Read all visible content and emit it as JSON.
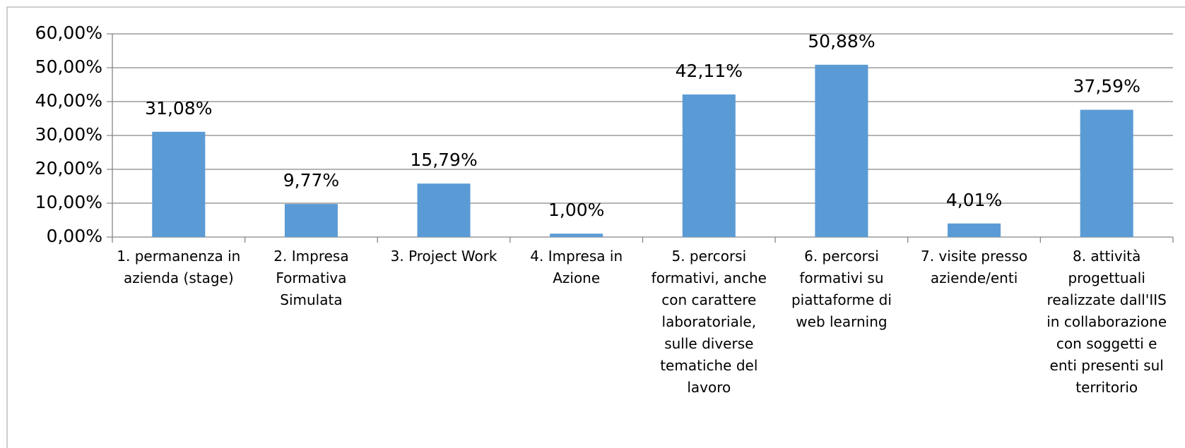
{
  "chart_data": {
    "type": "bar",
    "categories": [
      "1. permanenza in azienda (stage)",
      "2. Impresa Formativa Simulata",
      "3. Project Work",
      "4. Impresa in Azione",
      "5. percorsi formativi, anche con carattere laboratoriale, sulle diverse tematiche del lavoro",
      "6. percorsi formativi su piattaforme di web learning",
      "7. visite presso aziende/enti",
      "8. attività progettuali realizzate dall'IIS in collaborazione con soggetti e enti presenti sul territorio"
    ],
    "values": [
      31.08,
      9.77,
      15.79,
      1.0,
      42.11,
      50.88,
      4.01,
      37.59
    ],
    "value_labels": [
      "31,08%",
      "9,77%",
      "15,79%",
      "1,00%",
      "42,11%",
      "50,88%",
      "4,01%",
      "37,59%"
    ],
    "color": "#5b9bd5",
    "ylim": [
      0,
      60
    ],
    "yticks": [
      {
        "value": 0,
        "label": "0,00%"
      },
      {
        "value": 10,
        "label": "10,00%"
      },
      {
        "value": 20,
        "label": "20,00%"
      },
      {
        "value": 30,
        "label": "30,00%"
      },
      {
        "value": 40,
        "label": "40,00%"
      },
      {
        "value": 50,
        "label": "50,00%"
      },
      {
        "value": 60,
        "label": "60,00%"
      }
    ],
    "grid": true
  }
}
